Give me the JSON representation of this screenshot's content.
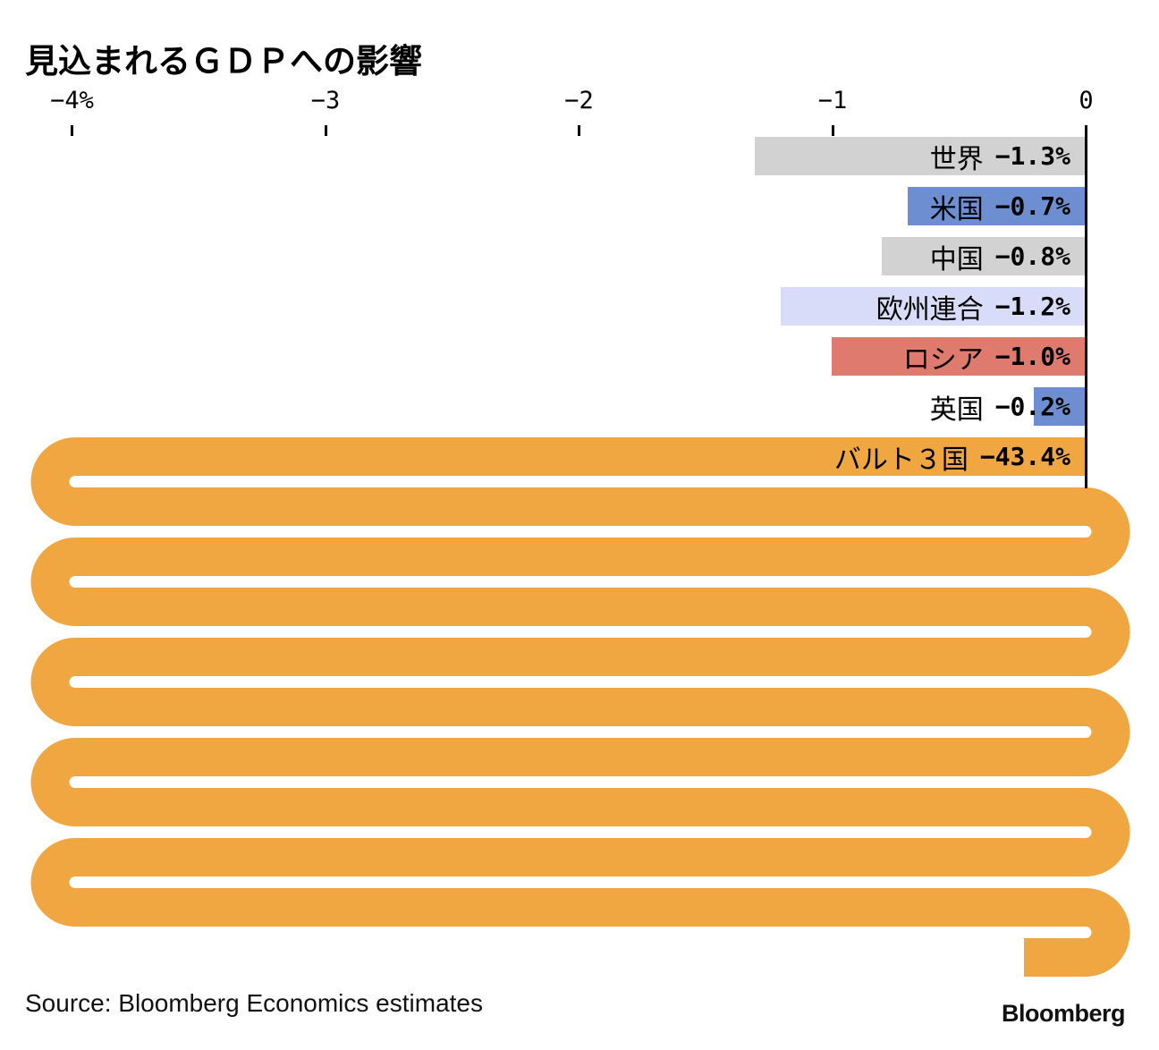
{
  "title": "見込まれるＧＤＰへの影響",
  "axis": {
    "ticks": [
      {
        "label": "−4%",
        "value": -4
      },
      {
        "label": "−3",
        "value": -3
      },
      {
        "label": "−2",
        "value": -2
      },
      {
        "label": "−1",
        "value": -1
      },
      {
        "label": "0",
        "value": 0
      }
    ]
  },
  "chart_data": {
    "type": "bar",
    "orientation": "horizontal",
    "title": "見込まれるＧＤＰへの影響",
    "categories": [
      "世界",
      "米国",
      "中国",
      "欧州連合",
      "ロシア",
      "英国",
      "バルト３国"
    ],
    "values": [
      -1.3,
      -0.7,
      -0.8,
      -1.2,
      -1.0,
      -0.2,
      -43.4
    ],
    "value_labels": [
      "−1.3%",
      "−0.7%",
      "−0.8%",
      "−1.2%",
      "−1.0%",
      "−0.2%",
      "−43.4%"
    ],
    "bar_colors": [
      "#D2D2D2",
      "#6D8FD1",
      "#D2D2D2",
      "#D8DCF8",
      "#DF7B6E",
      "#6D8FD1",
      "#F0A742"
    ],
    "xlim": [
      -4.28,
      0
    ],
    "grid": false,
    "legend": false,
    "overflow_style": "serpentine-wrap-for-last-bar"
  },
  "source": {
    "text": "Source: Bloomberg Economics estimates"
  },
  "logo": {
    "text": "Bloomberg"
  },
  "colors": {
    "axis": "#000000",
    "text": "#000000",
    "snake_orange": "#F0A742"
  }
}
